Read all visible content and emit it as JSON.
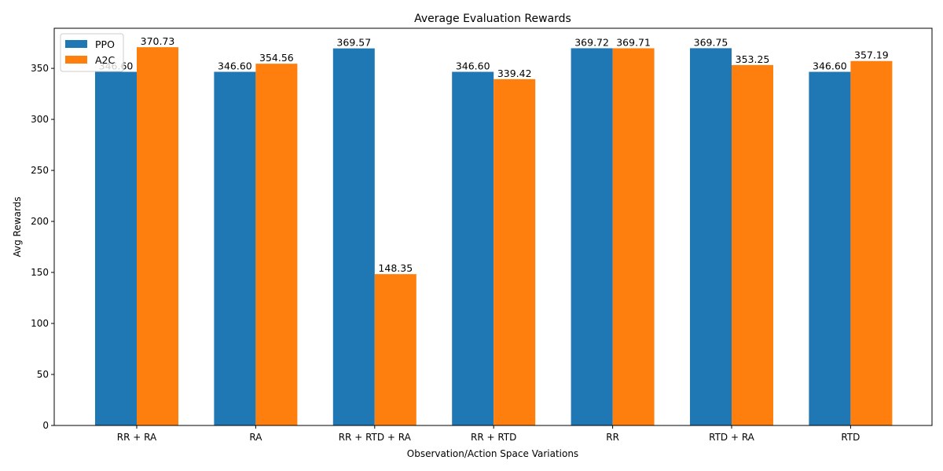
{
  "chart_data": {
    "type": "bar",
    "title": "Average Evaluation Rewards",
    "xlabel": "Observation/Action Space Variations",
    "ylabel": "Avg Rewards",
    "categories": [
      "RR + RA",
      "RA",
      "RR + RTD + RA",
      "RR + RTD",
      "RR",
      "RTD + RA",
      "RTD"
    ],
    "series": [
      {
        "name": "PPO",
        "color": "#1f77b4",
        "values": [
          346.6,
          346.6,
          369.57,
          346.6,
          369.72,
          369.75,
          346.6
        ],
        "labels": [
          "346.60",
          "346.60",
          "369.57",
          "346.60",
          "369.72",
          "369.75",
          "346.60"
        ]
      },
      {
        "name": "A2C",
        "color": "#ff7f0e",
        "values": [
          370.73,
          354.56,
          148.35,
          339.42,
          369.71,
          353.25,
          357.19
        ],
        "labels": [
          "370.73",
          "354.56",
          "148.35",
          "339.42",
          "369.71",
          "353.25",
          "357.19"
        ]
      }
    ],
    "ylim": [
      0,
      389.3
    ],
    "yticks": [
      0,
      50,
      100,
      150,
      200,
      250,
      300,
      350
    ],
    "ytick_labels": [
      "0",
      "50",
      "100",
      "150",
      "200",
      "250",
      "300",
      "350"
    ],
    "legend_position": "upper-left",
    "grid": false
  }
}
